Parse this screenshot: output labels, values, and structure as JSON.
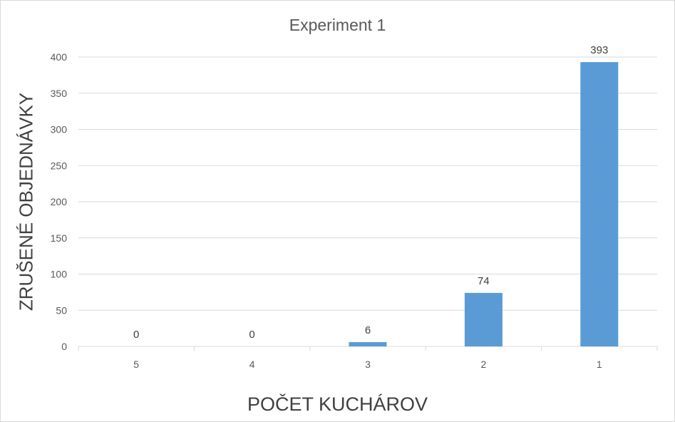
{
  "chart_data": {
    "type": "bar",
    "title": "Experiment 1",
    "xlabel": "POČET KUCHÁROV",
    "ylabel": "ZRUŠENÉ OBJEDNÁVKY",
    "categories": [
      "5",
      "4",
      "3",
      "2",
      "1"
    ],
    "values": [
      0,
      0,
      6,
      74,
      393
    ],
    "data_labels": [
      "0",
      "0",
      "6",
      "74",
      "393"
    ],
    "ylim": [
      0,
      400
    ],
    "yticks": [
      "0",
      "50",
      "100",
      "150",
      "200",
      "250",
      "300",
      "350",
      "400"
    ],
    "grid": true,
    "legend": "none",
    "bar_color": "#5b9bd5",
    "grid_color": "#d9d9d9"
  }
}
